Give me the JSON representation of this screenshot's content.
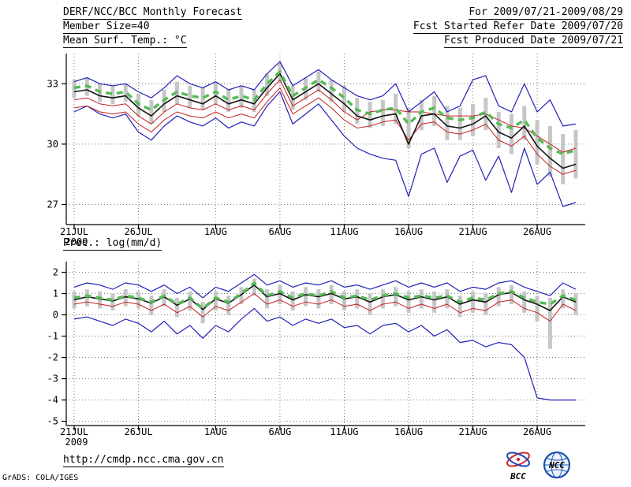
{
  "header": {
    "title": "DERF/NCC/BCC Monthly Forecast",
    "member_size": "Member Size=40",
    "variable_label": "Mean Surf. Temp.: °C",
    "for_range": "For 2009/07/21-2009/08/29",
    "fcst_started": "Fcst Started Refer Date 2009/07/20",
    "fcst_produced": "Fcst Produced Date 2009/07/21"
  },
  "panel2_label": "Prec.: log(mm/d)",
  "footer": {
    "url": "http://cmdp.ncc.cma.gov.cn",
    "grads_credit": "GrADS: COLA/IGES",
    "bcc_logo_label": "BCC",
    "ncc_logo_label": "NCC"
  },
  "colors": {
    "envelope": "#2020b8",
    "control": "#141414",
    "member_red": "#c42222",
    "ensemble_mean": "#55bb55",
    "spread_bar": "#c6c6c6",
    "grid": "#777777",
    "axis": "#000000"
  },
  "chart_data": [
    {
      "type": "line",
      "title": "Mean Surf. Temp.: °C",
      "xlabel": "",
      "ylabel": "°C",
      "ylim": [
        26.0,
        34.5
      ],
      "yticks": [
        27,
        30,
        33
      ],
      "grid": "dotted",
      "legend": "none",
      "xtick_indices": [
        0,
        5,
        11,
        16,
        21,
        26,
        31,
        36
      ],
      "xtick_labels": [
        "21JUL",
        "26JUL",
        "1AUG",
        "6AUG",
        "11AUG",
        "16AUG",
        "21AUG",
        "26AUG"
      ],
      "xtick_sublabel": "2009",
      "series": [
        {
          "name": "ensemble-max",
          "color_key": "envelope",
          "style": "solid",
          "width": 1.2,
          "values": [
            33.1,
            33.3,
            33.0,
            32.9,
            33.0,
            32.6,
            32.3,
            32.8,
            33.4,
            33.0,
            32.8,
            33.1,
            32.7,
            32.9,
            32.7,
            33.5,
            34.1,
            32.9,
            33.3,
            33.7,
            33.2,
            32.8,
            32.4,
            32.2,
            32.4,
            33.0,
            31.6,
            32.1,
            32.6,
            31.6,
            31.9,
            33.2,
            33.4,
            31.9,
            31.6,
            33.0,
            31.6,
            32.2,
            30.9,
            31.0
          ]
        },
        {
          "name": "ensemble-min",
          "color_key": "envelope",
          "style": "solid",
          "width": 1.2,
          "values": [
            31.6,
            31.9,
            31.5,
            31.3,
            31.5,
            30.6,
            30.2,
            30.9,
            31.4,
            31.1,
            30.9,
            31.3,
            30.8,
            31.1,
            30.9,
            31.9,
            32.6,
            31.0,
            31.5,
            32.0,
            31.2,
            30.4,
            29.8,
            29.5,
            29.3,
            29.2,
            27.4,
            29.5,
            29.8,
            28.1,
            29.4,
            29.7,
            28.2,
            29.4,
            27.6,
            29.8,
            28.0,
            28.6,
            26.9,
            27.1
          ]
        },
        {
          "name": "member-red-1",
          "color_key": "member_red",
          "style": "solid",
          "width": 1,
          "values": [
            32.2,
            32.3,
            32.0,
            31.9,
            32.0,
            31.4,
            31.0,
            31.6,
            32.0,
            31.8,
            31.7,
            32.0,
            31.7,
            31.9,
            31.7,
            32.5,
            33.2,
            31.9,
            32.3,
            32.7,
            32.2,
            31.6,
            31.2,
            31.6,
            31.7,
            31.7,
            31.6,
            31.6,
            31.5,
            31.4,
            31.4,
            31.4,
            31.5,
            31.2,
            30.9,
            30.8,
            30.4,
            30.0,
            29.6,
            29.8
          ]
        },
        {
          "name": "member-red-2",
          "color_key": "member_red",
          "style": "solid",
          "width": 1,
          "values": [
            31.8,
            31.9,
            31.6,
            31.5,
            31.6,
            31.0,
            30.6,
            31.2,
            31.6,
            31.4,
            31.3,
            31.6,
            31.3,
            31.5,
            31.3,
            32.1,
            32.8,
            31.5,
            31.9,
            32.3,
            31.8,
            31.2,
            30.8,
            30.9,
            31.1,
            31.2,
            30.2,
            31.0,
            31.1,
            30.6,
            30.5,
            30.7,
            31.0,
            30.2,
            29.9,
            30.4,
            29.5,
            28.9,
            28.5,
            28.7
          ]
        },
        {
          "name": "control-run",
          "color_key": "control",
          "style": "solid",
          "width": 1.6,
          "values": [
            32.6,
            32.7,
            32.4,
            32.3,
            32.4,
            31.8,
            31.4,
            32.0,
            32.4,
            32.2,
            32.0,
            32.4,
            32.0,
            32.2,
            32.0,
            32.8,
            33.5,
            32.2,
            32.6,
            33.0,
            32.5,
            32.0,
            31.4,
            31.2,
            31.4,
            31.5,
            30.0,
            31.4,
            31.5,
            30.9,
            30.8,
            31.0,
            31.4,
            30.6,
            30.3,
            30.9,
            29.9,
            29.3,
            28.8,
            29.0
          ]
        },
        {
          "name": "ensemble-mean",
          "color_key": "ensemble_mean",
          "style": "dashed",
          "width": 3.4,
          "values": [
            32.8,
            32.9,
            32.6,
            32.5,
            32.6,
            32.0,
            31.7,
            32.2,
            32.6,
            32.4,
            32.3,
            32.6,
            32.2,
            32.4,
            32.2,
            33.0,
            33.6,
            32.4,
            32.8,
            33.2,
            32.8,
            32.3,
            31.7,
            31.5,
            31.7,
            31.8,
            31.0,
            31.6,
            31.8,
            31.3,
            31.2,
            31.3,
            31.6,
            31.0,
            30.8,
            31.2,
            30.3,
            29.8,
            29.5,
            29.7
          ]
        }
      ],
      "spread_bars": {
        "high": [
          33.2,
          33.3,
          33.0,
          32.9,
          33.0,
          32.5,
          32.2,
          32.7,
          33.1,
          32.9,
          32.8,
          33.1,
          32.7,
          32.9,
          32.7,
          33.5,
          34.0,
          32.9,
          33.3,
          33.6,
          33.2,
          32.9,
          32.3,
          32.1,
          32.2,
          32.5,
          31.8,
          32.2,
          32.4,
          31.9,
          31.8,
          32.0,
          32.3,
          31.6,
          31.5,
          31.9,
          31.2,
          30.9,
          30.5,
          30.7
        ],
        "low": [
          32.3,
          32.4,
          32.1,
          32.0,
          32.1,
          31.4,
          31.0,
          31.6,
          32.0,
          31.8,
          31.7,
          32.0,
          31.6,
          31.8,
          31.6,
          32.4,
          33.0,
          31.7,
          32.2,
          32.6,
          32.1,
          31.6,
          31.0,
          30.8,
          30.9,
          31.0,
          29.8,
          30.7,
          30.9,
          30.2,
          30.2,
          30.4,
          30.7,
          29.8,
          29.5,
          30.2,
          29.0,
          28.4,
          28.0,
          28.3
        ]
      }
    },
    {
      "type": "line",
      "title": "Prec.: log(mm/d)",
      "xlabel": "",
      "ylabel": "log(mm/d)",
      "ylim": [
        -5.2,
        2.5
      ],
      "yticks": [
        2,
        1,
        0,
        -1,
        -2,
        -3,
        -4,
        -5
      ],
      "grid": "dotted",
      "legend": "none",
      "xtick_indices": [
        0,
        5,
        11,
        16,
        21,
        26,
        31,
        36
      ],
      "xtick_labels": [
        "21JUL",
        "26JUL",
        "1AUG",
        "6AUG",
        "11AUG",
        "16AUG",
        "21AUG",
        "26AUG"
      ],
      "xtick_sublabel": "2009",
      "series": [
        {
          "name": "ensemble-max",
          "color_key": "envelope",
          "style": "solid",
          "width": 1.2,
          "values": [
            1.3,
            1.5,
            1.4,
            1.2,
            1.5,
            1.4,
            1.1,
            1.4,
            1.0,
            1.3,
            0.8,
            1.3,
            1.1,
            1.5,
            1.9,
            1.4,
            1.6,
            1.3,
            1.5,
            1.4,
            1.6,
            1.3,
            1.4,
            1.2,
            1.4,
            1.6,
            1.3,
            1.5,
            1.3,
            1.5,
            1.1,
            1.3,
            1.2,
            1.5,
            1.6,
            1.3,
            1.1,
            0.9,
            1.5,
            1.2
          ]
        },
        {
          "name": "ensemble-min",
          "color_key": "envelope",
          "style": "solid",
          "width": 1.2,
          "values": [
            -0.2,
            -0.1,
            -0.3,
            -0.5,
            -0.2,
            -0.4,
            -0.8,
            -0.3,
            -0.9,
            -0.5,
            -1.1,
            -0.5,
            -0.8,
            -0.2,
            0.3,
            -0.3,
            -0.1,
            -0.5,
            -0.2,
            -0.4,
            -0.2,
            -0.6,
            -0.5,
            -0.9,
            -0.5,
            -0.4,
            -0.8,
            -0.5,
            -1.0,
            -0.7,
            -1.3,
            -1.2,
            -1.5,
            -1.3,
            -1.4,
            -2.0,
            -3.9,
            -4.0,
            -4.0,
            -4.0
          ]
        },
        {
          "name": "member-red-1",
          "color_key": "member_red",
          "style": "solid",
          "width": 1,
          "values": [
            0.5,
            0.6,
            0.5,
            0.4,
            0.6,
            0.5,
            0.2,
            0.5,
            0.1,
            0.4,
            -0.1,
            0.4,
            0.2,
            0.6,
            1.0,
            0.5,
            0.7,
            0.4,
            0.6,
            0.5,
            0.7,
            0.4,
            0.5,
            0.2,
            0.5,
            0.6,
            0.3,
            0.5,
            0.3,
            0.5,
            0.1,
            0.3,
            0.2,
            0.6,
            0.7,
            0.3,
            0.1,
            -0.3,
            0.5,
            0.2
          ]
        },
        {
          "name": "control-run",
          "color_key": "control",
          "style": "solid",
          "width": 1.6,
          "values": [
            0.7,
            0.85,
            0.75,
            0.65,
            0.85,
            0.75,
            0.55,
            0.85,
            0.45,
            0.75,
            0.25,
            0.75,
            0.55,
            0.95,
            1.4,
            0.85,
            1.0,
            0.7,
            0.95,
            0.85,
            1.0,
            0.75,
            0.85,
            0.6,
            0.85,
            0.95,
            0.7,
            0.85,
            0.7,
            0.85,
            0.5,
            0.7,
            0.6,
            0.95,
            1.05,
            0.7,
            0.5,
            0.2,
            0.85,
            0.6
          ]
        },
        {
          "name": "ensemble-mean",
          "color_key": "ensemble_mean",
          "style": "dashed",
          "width": 3.4,
          "values": [
            0.8,
            0.9,
            0.8,
            0.7,
            0.9,
            0.8,
            0.6,
            0.9,
            0.5,
            0.8,
            0.3,
            0.8,
            0.6,
            1.0,
            1.5,
            0.9,
            1.1,
            0.8,
            1.0,
            0.9,
            1.1,
            0.8,
            0.9,
            0.7,
            0.9,
            1.0,
            0.8,
            0.9,
            0.8,
            0.9,
            0.6,
            0.8,
            0.7,
            1.0,
            1.1,
            0.8,
            0.6,
            0.5,
            0.9,
            0.7
          ]
        }
      ],
      "spread_bars": {
        "high": [
          1.1,
          1.2,
          1.1,
          1.0,
          1.2,
          1.1,
          0.9,
          1.2,
          0.8,
          1.1,
          0.6,
          1.1,
          0.9,
          1.3,
          1.7,
          1.2,
          1.4,
          1.1,
          1.3,
          1.2,
          1.4,
          1.1,
          1.2,
          1.0,
          1.2,
          1.3,
          1.1,
          1.2,
          1.1,
          1.2,
          0.9,
          1.1,
          1.0,
          1.3,
          1.4,
          1.1,
          0.9,
          0.8,
          1.2,
          1.0
        ],
        "low": [
          0.3,
          0.4,
          0.3,
          0.2,
          0.4,
          0.3,
          0.0,
          0.4,
          -0.1,
          0.2,
          -0.4,
          0.2,
          0.0,
          0.5,
          0.9,
          0.3,
          0.5,
          0.2,
          0.4,
          0.3,
          0.5,
          0.2,
          0.3,
          0.0,
          0.3,
          0.4,
          0.1,
          0.3,
          0.1,
          0.3,
          -0.1,
          0.1,
          0.0,
          0.4,
          0.5,
          0.1,
          -0.3,
          -1.6,
          0.3,
          0.0
        ]
      }
    }
  ]
}
